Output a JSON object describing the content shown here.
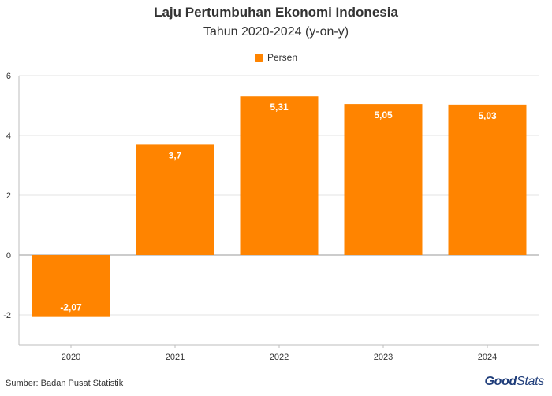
{
  "title": "Laju Pertumbuhan Ekonomi Indonesia",
  "subtitle": "Tahun 2020-2024 (y-on-y)",
  "legend": {
    "label": "Persen",
    "color": "#ff8400"
  },
  "source": "Sumber: Badan Pusat Statistik",
  "brand": {
    "part1": "Good",
    "part2": "Stats"
  },
  "chart_data": {
    "type": "bar",
    "categories": [
      "2020",
      "2021",
      "2022",
      "2023",
      "2024"
    ],
    "series": [
      {
        "name": "Persen",
        "values": [
          -2.07,
          3.7,
          5.31,
          5.05,
          5.03
        ]
      }
    ],
    "value_labels": [
      "-2,07",
      "3,7",
      "5,31",
      "5,05",
      "5,03"
    ],
    "ylim": [
      -3,
      6
    ],
    "yticks": [
      -2,
      0,
      2,
      4,
      6
    ],
    "ytick_labels": [
      "-2",
      "0",
      "2",
      "4",
      "6"
    ],
    "grid": true,
    "legend_position": "top-center",
    "bar_color": "#ff8400"
  }
}
